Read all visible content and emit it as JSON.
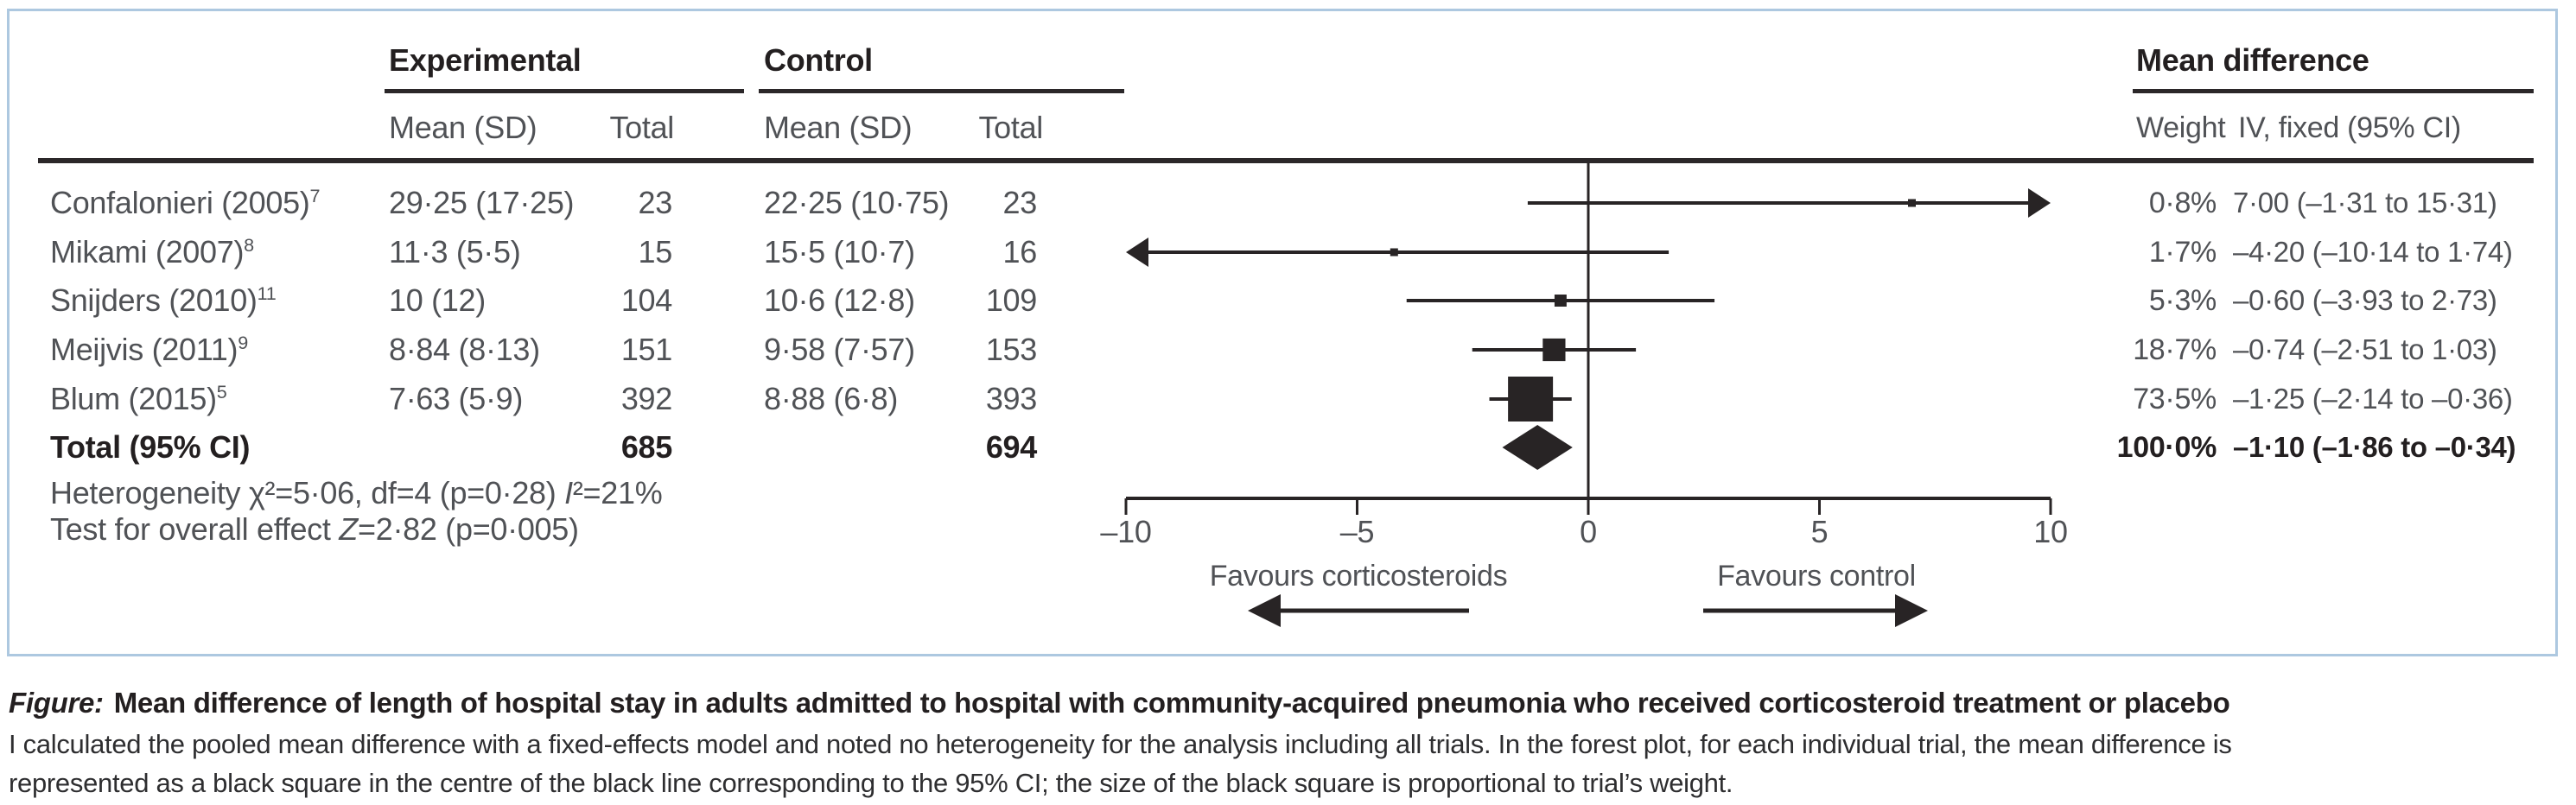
{
  "figure": {
    "groups": [
      "Experimental",
      "Control",
      "Mean difference"
    ],
    "subheaders": {
      "mean_sd": "Mean (SD)",
      "total": "Total",
      "weight": "Weight",
      "iv_fixed": "IV, fixed (95% CI)"
    },
    "rows": [
      {
        "study": "Confalonieri (2005)",
        "ref": "7",
        "exp_mean_sd": "29·25 (17·25)",
        "exp_total": "23",
        "ctrl_mean_sd": "22·25 (10·75)",
        "ctrl_total": "23",
        "weight": "0·8%",
        "iv_fixed_ci": "7·00 (–1·31 to 15·31)"
      },
      {
        "study": "Mikami (2007)",
        "ref": "8",
        "exp_mean_sd": "11·3 (5·5)",
        "exp_total": "15",
        "ctrl_mean_sd": "15·5 (10·7)",
        "ctrl_total": "16",
        "weight": "1·7%",
        "iv_fixed_ci": "–4·20 (–10·14 to 1·74)"
      },
      {
        "study": "Snijders (2010)",
        "ref": "11",
        "exp_mean_sd": "10 (12)",
        "exp_total": "104",
        "ctrl_mean_sd": "10·6 (12·8)",
        "ctrl_total": "109",
        "weight": "5·3%",
        "iv_fixed_ci": "–0·60 (–3·93 to 2·73)"
      },
      {
        "study": "Meijvis (2011)",
        "ref": "9",
        "exp_mean_sd": "8·84 (8·13)",
        "exp_total": "151",
        "ctrl_mean_sd": "9·58 (7·57)",
        "ctrl_total": "153",
        "weight": "18·7%",
        "iv_fixed_ci": "–0·74 (–2·51 to 1·03)"
      },
      {
        "study": "Blum (2015)",
        "ref": "5",
        "exp_mean_sd": "7·63 (5·9)",
        "exp_total": "392",
        "ctrl_mean_sd": "8·88 (6·8)",
        "ctrl_total": "393",
        "weight": "73·5%",
        "iv_fixed_ci": "–1·25 (–2·14 to –0·36)"
      }
    ],
    "total_row": {
      "label": "Total (95% CI)",
      "exp_total": "685",
      "ctrl_total": "694",
      "weight": "100·0%",
      "iv_fixed_ci": "–1·10 (–1·86 to –0·34)"
    },
    "stats": {
      "het_prefix": "Heterogeneity χ²=5·06, df=4 (p=0·28) ",
      "het_i": "I",
      "het_suffix": "²=21%",
      "test_prefix": "Test for overall effect ",
      "test_z": "Z",
      "test_suffix": "=2·82 (p=0·005)"
    },
    "axis": {
      "tick_labels": [
        "–10",
        "–5",
        "0",
        "5",
        "10"
      ]
    },
    "favours_left": "Favours corticosteroids",
    "favours_right": "Favours control"
  },
  "caption": {
    "label": "Figure:",
    "title": "Mean difference of length of hospital stay in adults admitted to hospital with community-acquired pneumonia who received corticosteroid treatment or placebo",
    "body_lines": [
      "I calculated the pooled mean difference with a fixed-effects model and noted no heterogeneity for the analysis including all trials. In the forest plot, for each individual trial, the mean difference is",
      "represented as a black square in the centre of the black line corresponding to the 95% CI; the size of the black square is proportional to trial’s weight."
    ]
  },
  "colors": {
    "ink": "#282425",
    "text": "#505256",
    "panel_border": "#adc8e0"
  },
  "chart_data": {
    "type": "scatter",
    "subtype": "forest-plot",
    "xlim": [
      -10,
      10
    ],
    "xticks": [
      -10,
      -5,
      0,
      5,
      10
    ],
    "x_direction_labels": {
      "left": "Favours corticosteroids",
      "right": "Favours control"
    },
    "effect_measure": "Mean difference, IV, fixed (95% CI)",
    "studies": [
      {
        "name": "Confalonieri (2005)",
        "mean": 7.0,
        "ci_low": -1.31,
        "ci_high": 15.31,
        "weight_pct": 0.8
      },
      {
        "name": "Mikami (2007)",
        "mean": -4.2,
        "ci_low": -10.14,
        "ci_high": 1.74,
        "weight_pct": 1.7
      },
      {
        "name": "Snijders (2010)",
        "mean": -0.6,
        "ci_low": -3.93,
        "ci_high": 2.73,
        "weight_pct": 5.3
      },
      {
        "name": "Meijvis (2011)",
        "mean": -0.74,
        "ci_low": -2.51,
        "ci_high": 1.03,
        "weight_pct": 18.7
      },
      {
        "name": "Blum (2015)",
        "mean": -1.25,
        "ci_low": -2.14,
        "ci_high": -0.36,
        "weight_pct": 73.5
      }
    ],
    "pooled": {
      "name": "Total (95% CI)",
      "mean": -1.1,
      "ci_low": -1.86,
      "ci_high": -0.34,
      "weight_pct": 100.0
    },
    "heterogeneity": "χ²=5·06, df=4 (p=0·28) I²=21%",
    "overall_effect": "Z=2·82 (p=0·005)"
  }
}
